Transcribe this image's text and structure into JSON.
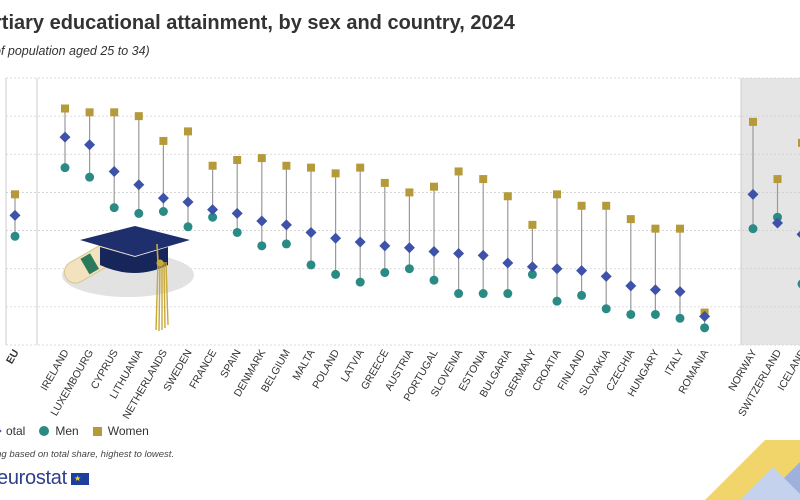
{
  "header": {
    "title": "rtiary educational attainment, by sex and country, 2024",
    "subtitle": "of population aged 25 to 34)"
  },
  "legend": {
    "total": "otal",
    "men": "Men",
    "women": "Women"
  },
  "footer": {
    "note": "ing based on total share, highest to lowest.",
    "logo": "eurostat"
  },
  "colors": {
    "total": "#3d52a8",
    "men": "#2a8a84",
    "women": "#b59a3a",
    "grid": "#d0d0d0",
    "efta_bg": "#e5e5e5"
  },
  "chart_data": {
    "type": "scatter",
    "title": "rtiary educational attainment, by sex and country, 2024",
    "subtitle": "of population aged 25 to 34)",
    "categories": [
      "EU",
      "IRELAND",
      "LUXEMBOURG",
      "CYPRUS",
      "LITHUANIA",
      "NETHERLANDS",
      "SWEDEN",
      "FRANCE",
      "SPAIN",
      "DENMARK",
      "BELGIUM",
      "MALTA",
      "POLAND",
      "LATVIA",
      "GREECE",
      "AUSTRIA",
      "PORTUGAL",
      "SLOVENIA",
      "ESTONIA",
      "BULGARIA",
      "GERMANY",
      "CROATIA",
      "FINLAND",
      "SLOVAKIA",
      "CZECHIA",
      "HUNGARY",
      "ITALY",
      "ROMANIA",
      "NORWAY",
      "SWITZERLAND",
      "ICELAND"
    ],
    "groups": [
      "EU",
      "member",
      "member",
      "member",
      "member",
      "member",
      "member",
      "member",
      "member",
      "member",
      "member",
      "member",
      "member",
      "member",
      "member",
      "member",
      "member",
      "member",
      "member",
      "member",
      "member",
      "member",
      "member",
      "member",
      "member",
      "member",
      "member",
      "member",
      "efta",
      "efta",
      "efta"
    ],
    "series": [
      {
        "name": "otal",
        "values": [
          44.0,
          64.5,
          62.5,
          55.5,
          52.0,
          48.5,
          47.5,
          45.5,
          44.5,
          42.5,
          41.5,
          39.5,
          38.0,
          37.0,
          36.0,
          35.5,
          34.5,
          34.0,
          33.5,
          31.5,
          30.5,
          30.0,
          29.5,
          28.0,
          25.5,
          24.5,
          24.0,
          17.5,
          49.5,
          42.0,
          39.0
        ]
      },
      {
        "name": "Men",
        "values": [
          38.5,
          56.5,
          54.0,
          46.0,
          44.5,
          45.0,
          41.0,
          43.5,
          39.5,
          36.0,
          36.5,
          31.0,
          28.5,
          26.5,
          29.0,
          30.0,
          27.0,
          23.5,
          23.5,
          23.5,
          28.5,
          21.5,
          23.0,
          19.5,
          18.0,
          18.0,
          17.0,
          14.5,
          40.5,
          43.5,
          26.0
        ]
      },
      {
        "name": "Women",
        "values": [
          49.5,
          72.0,
          71.0,
          71.0,
          70.0,
          63.5,
          66.0,
          57.0,
          58.5,
          59.0,
          57.0,
          56.5,
          55.0,
          56.5,
          52.5,
          50.0,
          51.5,
          55.5,
          53.5,
          49.0,
          41.5,
          49.5,
          46.5,
          46.5,
          43.0,
          40.5,
          40.5,
          18.5,
          68.5,
          53.5,
          63.0
        ]
      }
    ],
    "ylim": [
      10,
      80
    ],
    "grid": true,
    "y_axis_labels_visible": false,
    "legend_position": "bottom-left"
  }
}
